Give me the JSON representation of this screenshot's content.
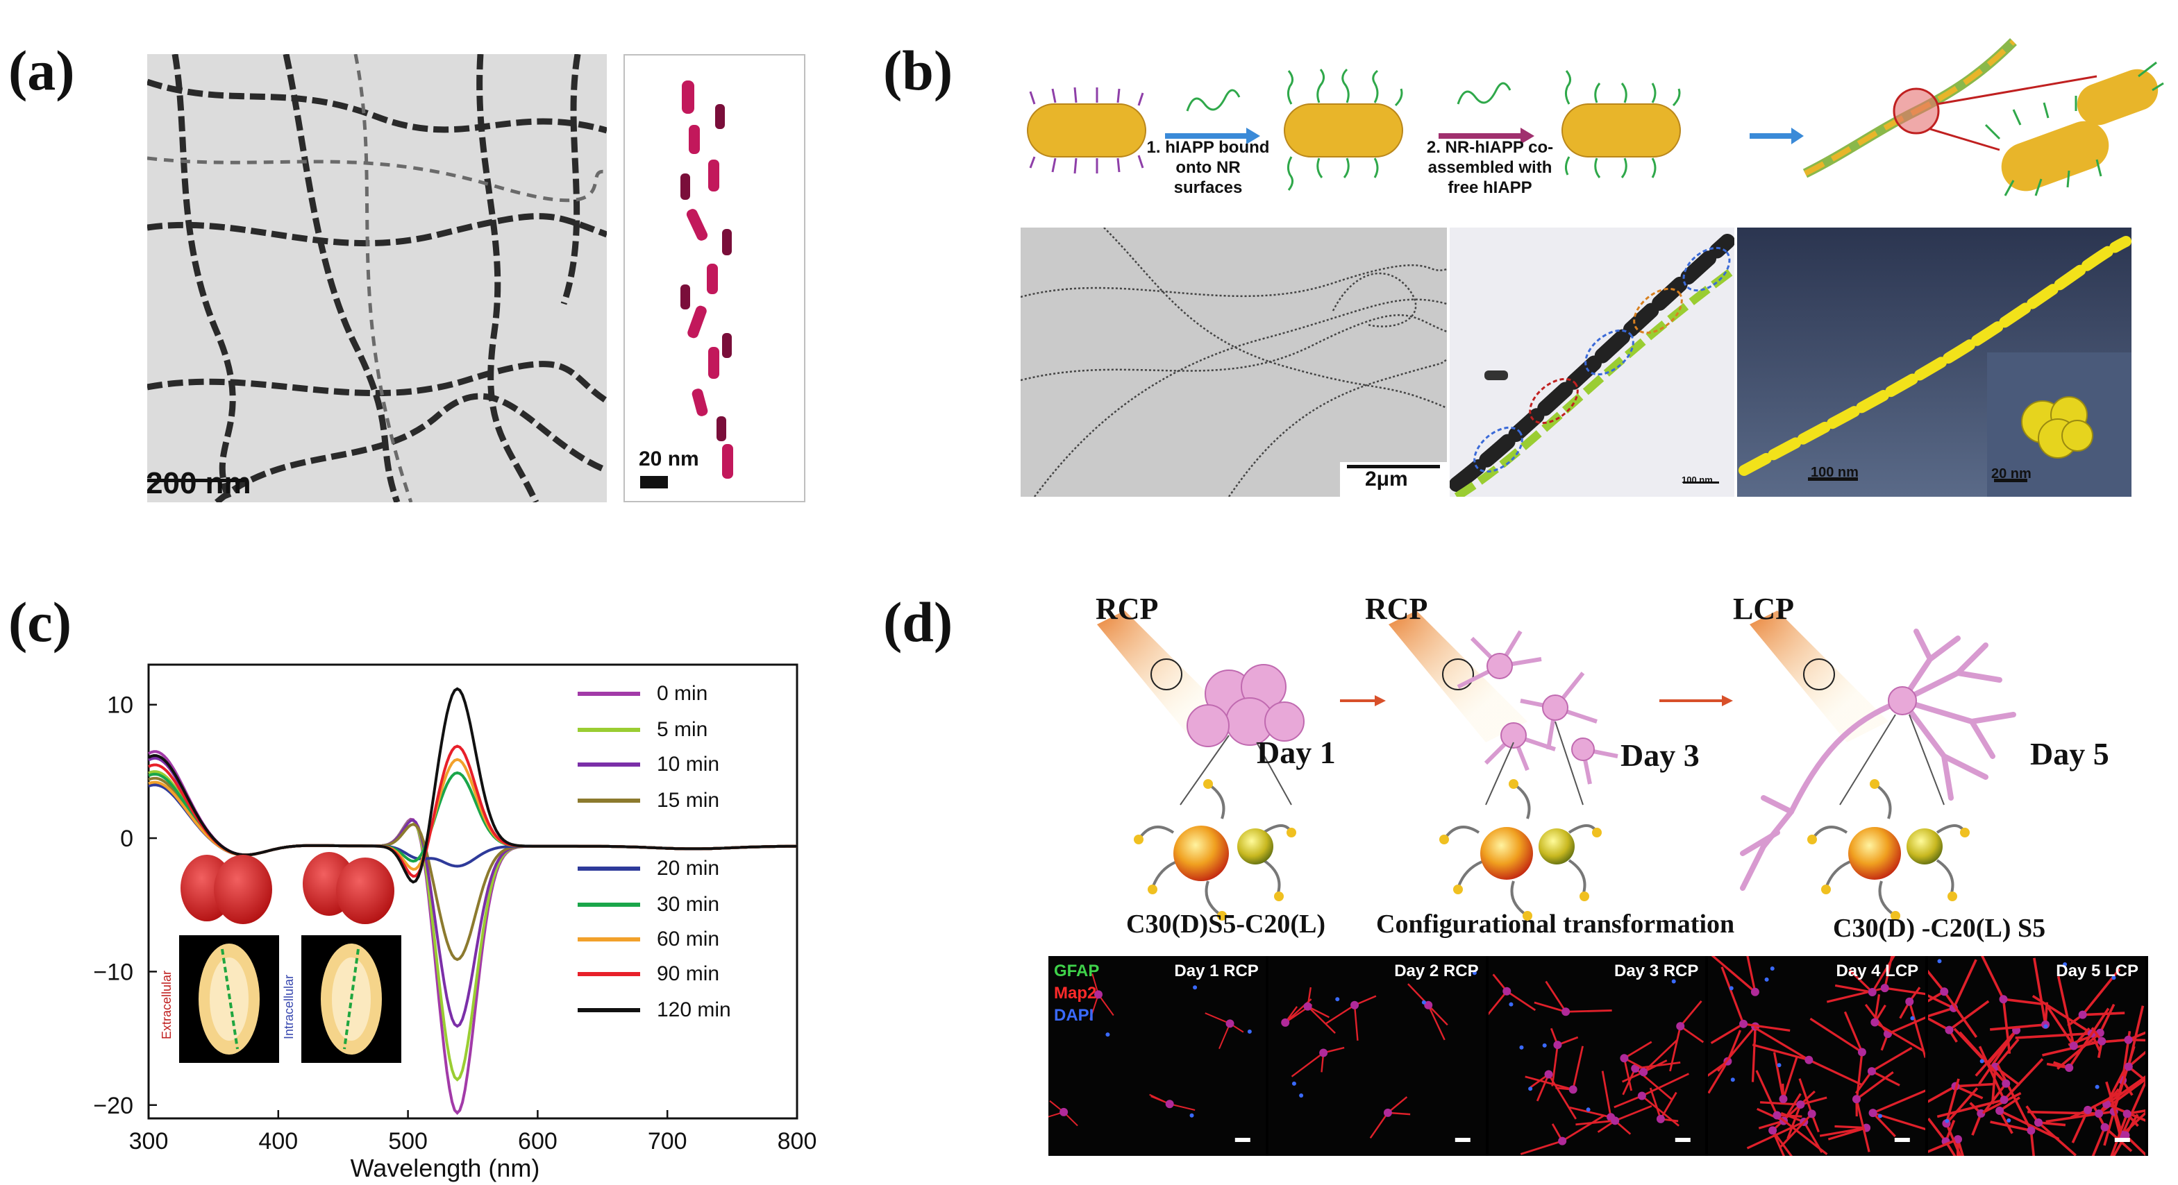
{
  "panels": {
    "a": {
      "letter": "(a)",
      "scale_main": "200 nm",
      "scale_inset": "20 nm"
    },
    "b": {
      "letter": "(b)",
      "step1": "1. hIAPP bound onto NR surfaces",
      "step2": "2. NR-hIAPP co-assembled with free hIAPP",
      "scale_1": "2μm",
      "scale_2": "100 nm",
      "scale_3": "100 nm",
      "scale_4": "20 nm"
    },
    "c": {
      "letter": "(c)",
      "inset_label_left": "Extracellular",
      "inset_label_right": "Intracellular"
    },
    "d": {
      "letter": "(d)",
      "pol_1": "RCP",
      "pol_2": "RCP",
      "pol_3": "LCP",
      "day_1": "Day 1",
      "day_2": "Day 3",
      "day_3": "Day 5",
      "mol_1": "C30(D)S5-C20(L)",
      "mol_2": "Configurational transformation",
      "mol_3": "C30(D) -C20(L) S5",
      "fl_legend": [
        "GFAP",
        "Map2",
        "DAPI"
      ],
      "fl_panels": [
        "Day 1 RCP",
        "Day 2 RCP",
        "Day 3 RCP",
        "Day 4 LCP",
        "Day 5 LCP"
      ]
    }
  },
  "chart_data": {
    "type": "line",
    "title": "",
    "xlabel": "Wavelength (nm)",
    "ylabel": "",
    "xlim": [
      300,
      800
    ],
    "ylim": [
      -21,
      13
    ],
    "x_ticks": [
      300,
      400,
      500,
      600,
      700,
      800
    ],
    "y_ticks": [
      10,
      0,
      -10,
      -20
    ],
    "legend_position": "right",
    "series": [
      {
        "name": "0 min",
        "color": "#a23aa8",
        "peak_510": 3.2,
        "peak_540": -20.0,
        "low_uv": 6.5
      },
      {
        "name": "5 min",
        "color": "#9acd32",
        "peak_510": 3.0,
        "peak_540": -17.5,
        "low_uv": 5.0
      },
      {
        "name": "10 min",
        "color": "#7b2fa8",
        "peak_510": 2.8,
        "peak_540": -13.5,
        "low_uv": 6.0
      },
      {
        "name": "15 min",
        "color": "#8c7a2e",
        "peak_510": 2.2,
        "peak_540": -8.5,
        "low_uv": 4.5
      },
      {
        "name": "20 min",
        "color": "#2e3a9a",
        "peak_510": -0.8,
        "peak_540": -1.5,
        "low_uv": 4.0
      },
      {
        "name": "30 min",
        "color": "#1aa64a",
        "peak_510": -1.5,
        "peak_540": 5.5,
        "low_uv": 4.8
      },
      {
        "name": "60 min",
        "color": "#f2a12b",
        "peak_510": -2.2,
        "peak_540": 6.5,
        "low_uv": 4.2
      },
      {
        "name": "90 min",
        "color": "#e8202a",
        "peak_510": -2.8,
        "peak_540": 7.5,
        "low_uv": 5.5
      },
      {
        "name": "120 min",
        "color": "#111111",
        "peak_510": -3.5,
        "peak_540": 11.8,
        "low_uv": 6.2
      }
    ]
  }
}
